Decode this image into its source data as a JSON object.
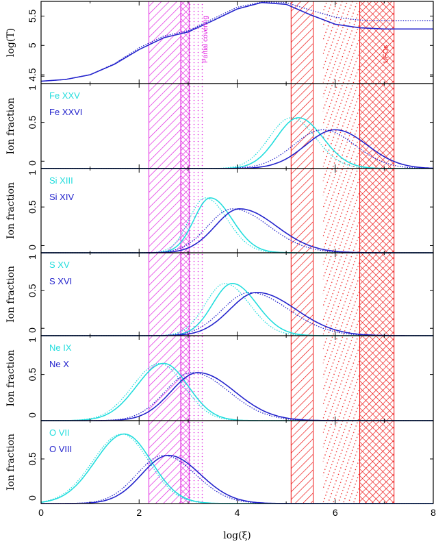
{
  "chart_data": {
    "type": "line",
    "xlabel": "log(ξ)",
    "xlim": [
      0,
      8
    ],
    "x_ticks": [
      "0",
      "2",
      "4",
      "6",
      "8"
    ],
    "shaded_regions": [
      {
        "name": "Partial covering",
        "color": "#e020e0",
        "bands": [
          {
            "x0": 2.2,
            "x1": 2.85,
            "style": "diagonal"
          },
          {
            "x0": 2.85,
            "x1": 3.02,
            "style": "crosshatch"
          },
          {
            "x0": 3.02,
            "x1": 3.35,
            "style": "dotted"
          }
        ]
      },
      {
        "name": "UFOs",
        "color": "#ee1111",
        "bands": [
          {
            "x0": 5.1,
            "x1": 5.55,
            "style": "diagonal"
          },
          {
            "x0": 5.75,
            "x1": 6.5,
            "style": "dotted"
          },
          {
            "x0": 6.5,
            "x1": 7.2,
            "style": "crosshatch"
          }
        ]
      }
    ],
    "panels": [
      {
        "ylabel": "log(T)",
        "y_ticks": [
          "5.5",
          "5",
          "4.5"
        ],
        "ylim": [
          4.35,
          5.75
        ],
        "series": [
          {
            "color": "#2222cc",
            "style": "solid",
            "points": [
              [
                0,
                4.39
              ],
              [
                0.5,
                4.42
              ],
              [
                1.0,
                4.5
              ],
              [
                1.5,
                4.68
              ],
              [
                2.0,
                4.93
              ],
              [
                2.5,
                5.13
              ],
              [
                3.0,
                5.23
              ],
              [
                3.5,
                5.42
              ],
              [
                4.0,
                5.62
              ],
              [
                4.5,
                5.73
              ],
              [
                5.0,
                5.7
              ],
              [
                5.5,
                5.52
              ],
              [
                6.0,
                5.36
              ],
              [
                6.5,
                5.3
              ],
              [
                7.0,
                5.28
              ],
              [
                8.0,
                5.28
              ]
            ]
          },
          {
            "color": "#2222cc",
            "style": "dotted",
            "points": [
              [
                0,
                4.39
              ],
              [
                0.5,
                4.42
              ],
              [
                1.0,
                4.5
              ],
              [
                1.5,
                4.69
              ],
              [
                2.0,
                4.96
              ],
              [
                2.5,
                5.16
              ],
              [
                3.0,
                5.25
              ],
              [
                3.5,
                5.45
              ],
              [
                4.0,
                5.65
              ],
              [
                4.5,
                5.74
              ],
              [
                5.0,
                5.73
              ],
              [
                5.5,
                5.6
              ],
              [
                6.0,
                5.48
              ],
              [
                6.5,
                5.43
              ],
              [
                7.0,
                5.42
              ],
              [
                8.0,
                5.42
              ]
            ]
          }
        ]
      },
      {
        "ylabel": "Ion fraction",
        "y_ticks": [
          "1",
          "0.5",
          "0"
        ],
        "ylim": [
          0,
          0.92
        ],
        "ions": [
          {
            "label": "Fe XXV",
            "color": "#22dddd"
          },
          {
            "label": "Fe XXVI",
            "color": "#2222cc"
          }
        ],
        "series": [
          {
            "color": "#22dddd",
            "style": "solid",
            "peak_x": 5.25,
            "peak_y": 0.55,
            "width_left": 0.45,
            "width_right": 0.5
          },
          {
            "color": "#22dddd",
            "style": "dotted",
            "peak_x": 5.1,
            "peak_y": 0.55,
            "width_left": 0.45,
            "width_right": 0.5
          },
          {
            "color": "#2222cc",
            "style": "solid",
            "peak_x": 6.0,
            "peak_y": 0.42,
            "width_left": 0.6,
            "width_right": 0.65
          },
          {
            "color": "#2222cc",
            "style": "dotted",
            "peak_x": 5.75,
            "peak_y": 0.42,
            "width_left": 0.6,
            "width_right": 0.65
          }
        ]
      },
      {
        "ylabel": "Ion fraction",
        "y_ticks": [
          "1",
          "0.5",
          "0"
        ],
        "ylim": [
          0,
          0.92
        ],
        "ions": [
          {
            "label": "Si XIII",
            "color": "#22dddd"
          },
          {
            "label": "Si XIV",
            "color": "#2222cc"
          }
        ],
        "series": [
          {
            "color": "#22dddd",
            "style": "solid",
            "peak_x": 3.45,
            "peak_y": 0.6,
            "width_left": 0.33,
            "width_right": 0.45
          },
          {
            "color": "#22dddd",
            "style": "dotted",
            "peak_x": 3.35,
            "peak_y": 0.6,
            "width_left": 0.33,
            "width_right": 0.45
          },
          {
            "color": "#2222cc",
            "style": "solid",
            "peak_x": 4.05,
            "peak_y": 0.48,
            "width_left": 0.5,
            "width_right": 0.75
          },
          {
            "color": "#2222cc",
            "style": "dotted",
            "peak_x": 3.9,
            "peak_y": 0.48,
            "width_left": 0.5,
            "width_right": 0.75
          }
        ]
      },
      {
        "ylabel": "Ion fraction",
        "y_ticks": [
          "1",
          "0.5",
          "0"
        ],
        "ylim": [
          0,
          0.92
        ],
        "ions": [
          {
            "label": "S XV",
            "color": "#22dddd"
          },
          {
            "label": "S XVI",
            "color": "#2222cc"
          }
        ],
        "series": [
          {
            "color": "#22dddd",
            "style": "solid",
            "peak_x": 3.9,
            "peak_y": 0.58,
            "width_left": 0.4,
            "width_right": 0.5
          },
          {
            "color": "#22dddd",
            "style": "dotted",
            "peak_x": 3.75,
            "peak_y": 0.58,
            "width_left": 0.4,
            "width_right": 0.5
          },
          {
            "color": "#2222cc",
            "style": "solid",
            "peak_x": 4.4,
            "peak_y": 0.48,
            "width_left": 0.55,
            "width_right": 0.8
          },
          {
            "color": "#2222cc",
            "style": "dotted",
            "peak_x": 4.25,
            "peak_y": 0.48,
            "width_left": 0.55,
            "width_right": 0.8
          }
        ]
      },
      {
        "ylabel": "Ion fraction",
        "y_ticks": [
          "1",
          "0.5",
          "0"
        ],
        "ylim": [
          0,
          0.92
        ],
        "ions": [
          {
            "label": "Ne IX",
            "color": "#22dddd"
          },
          {
            "label": "Ne X",
            "color": "#2222cc"
          }
        ],
        "series": [
          {
            "color": "#22dddd",
            "style": "solid",
            "peak_x": 2.5,
            "peak_y": 0.62,
            "width_left": 0.55,
            "width_right": 0.5
          },
          {
            "color": "#22dddd",
            "style": "dotted",
            "peak_x": 2.42,
            "peak_y": 0.62,
            "width_left": 0.55,
            "width_right": 0.5
          },
          {
            "color": "#2222cc",
            "style": "solid",
            "peak_x": 3.2,
            "peak_y": 0.52,
            "width_left": 0.55,
            "width_right": 0.75
          },
          {
            "color": "#2222cc",
            "style": "dotted",
            "peak_x": 3.08,
            "peak_y": 0.52,
            "width_left": 0.55,
            "width_right": 0.75
          }
        ]
      },
      {
        "ylabel": "Ion fraction",
        "y_ticks": [
          "0.5",
          "0"
        ],
        "ylim": [
          0,
          0.93
        ],
        "ions": [
          {
            "label": "O VII",
            "color": "#22dddd"
          },
          {
            "label": "O VIII",
            "color": "#2222cc"
          }
        ],
        "series": [
          {
            "color": "#22dddd",
            "style": "solid",
            "peak_x": 1.7,
            "peak_y": 0.78,
            "width_left": 0.6,
            "width_right": 0.55
          },
          {
            "color": "#22dddd",
            "style": "dotted",
            "peak_x": 1.65,
            "peak_y": 0.78,
            "width_left": 0.6,
            "width_right": 0.55
          },
          {
            "color": "#2222cc",
            "style": "solid",
            "peak_x": 2.6,
            "peak_y": 0.54,
            "width_left": 0.55,
            "width_right": 0.65
          },
          {
            "color": "#2222cc",
            "style": "dotted",
            "peak_x": 2.5,
            "peak_y": 0.54,
            "width_left": 0.55,
            "width_right": 0.65
          }
        ]
      }
    ]
  }
}
